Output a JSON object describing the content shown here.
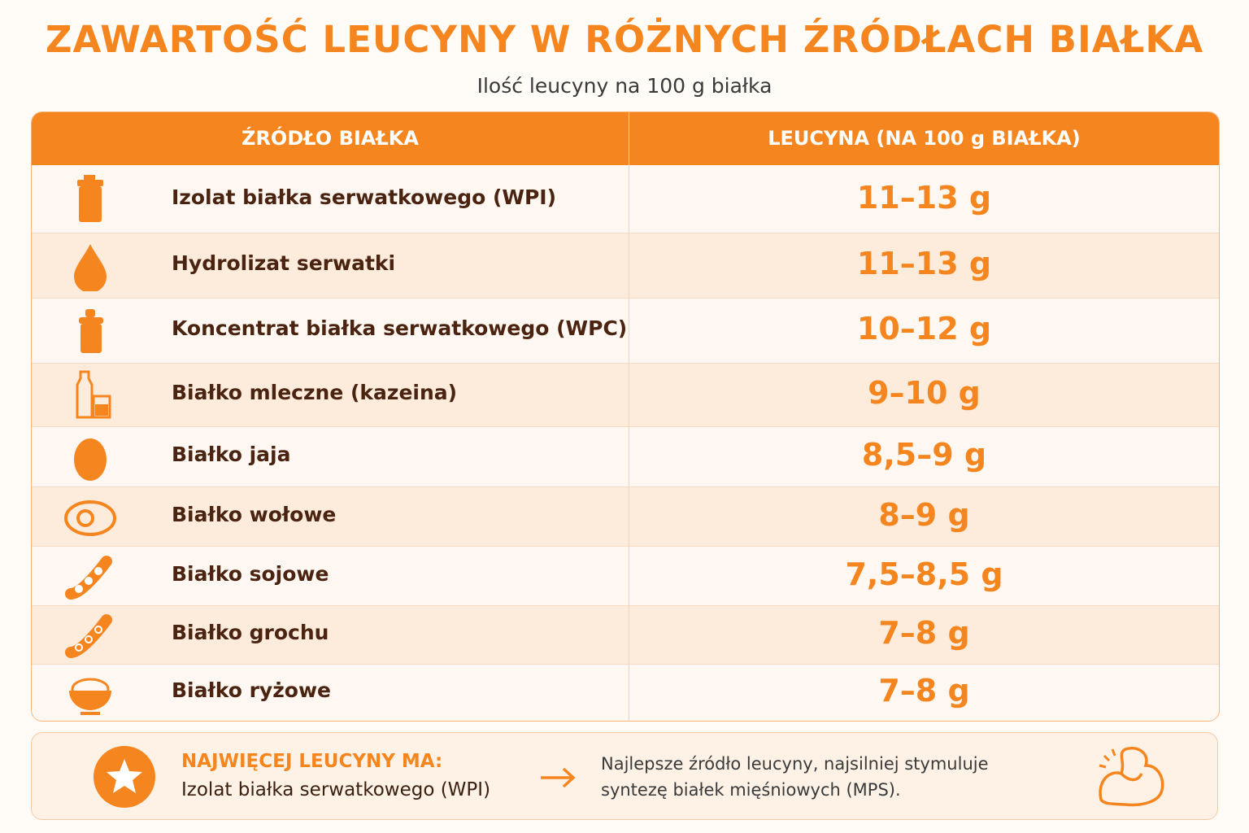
{
  "header": {
    "title": "ZAWARTOŚĆ LEUCYNY W RÓŻNYCH ŹRÓDŁACH BIAŁKA",
    "subtitle": "Ilość leucyny na 100 g białka"
  },
  "table": {
    "columns": [
      "ŹRÓDŁO BIAŁKA",
      "LEUCYNA (NA 100 g BIAŁKA)"
    ],
    "rows": [
      [
        "Izolat białka serwatkowego (WPI)",
        "11–13 g"
      ],
      [
        "Hydrolizat serwatki",
        "11–13 g"
      ],
      [
        "Koncentrat białka serwatkowego (WPC)",
        "10–12 g"
      ],
      [
        "Białko mleczne (kazeina)",
        "9–10 g"
      ],
      [
        "Białko jaja",
        "8,5–9 g"
      ],
      [
        "Białko wołowe",
        "8–9 g"
      ],
      [
        "Białko sojowe",
        "7,5–8,5 g"
      ],
      [
        "Białko grochu",
        "7–8 g"
      ],
      [
        "Białko ryżowe",
        "7–8 g"
      ]
    ]
  },
  "footer": {
    "label": "NAJWIĘCEJ LEUCYNY MA:",
    "winner": "Izolat białka serwatkowego (WPI)",
    "description": [
      "Najlepsze źródło leucyny, najsilniej stymuluje",
      "syntezę białek mięśniowych (MPS)."
    ]
  }
}
